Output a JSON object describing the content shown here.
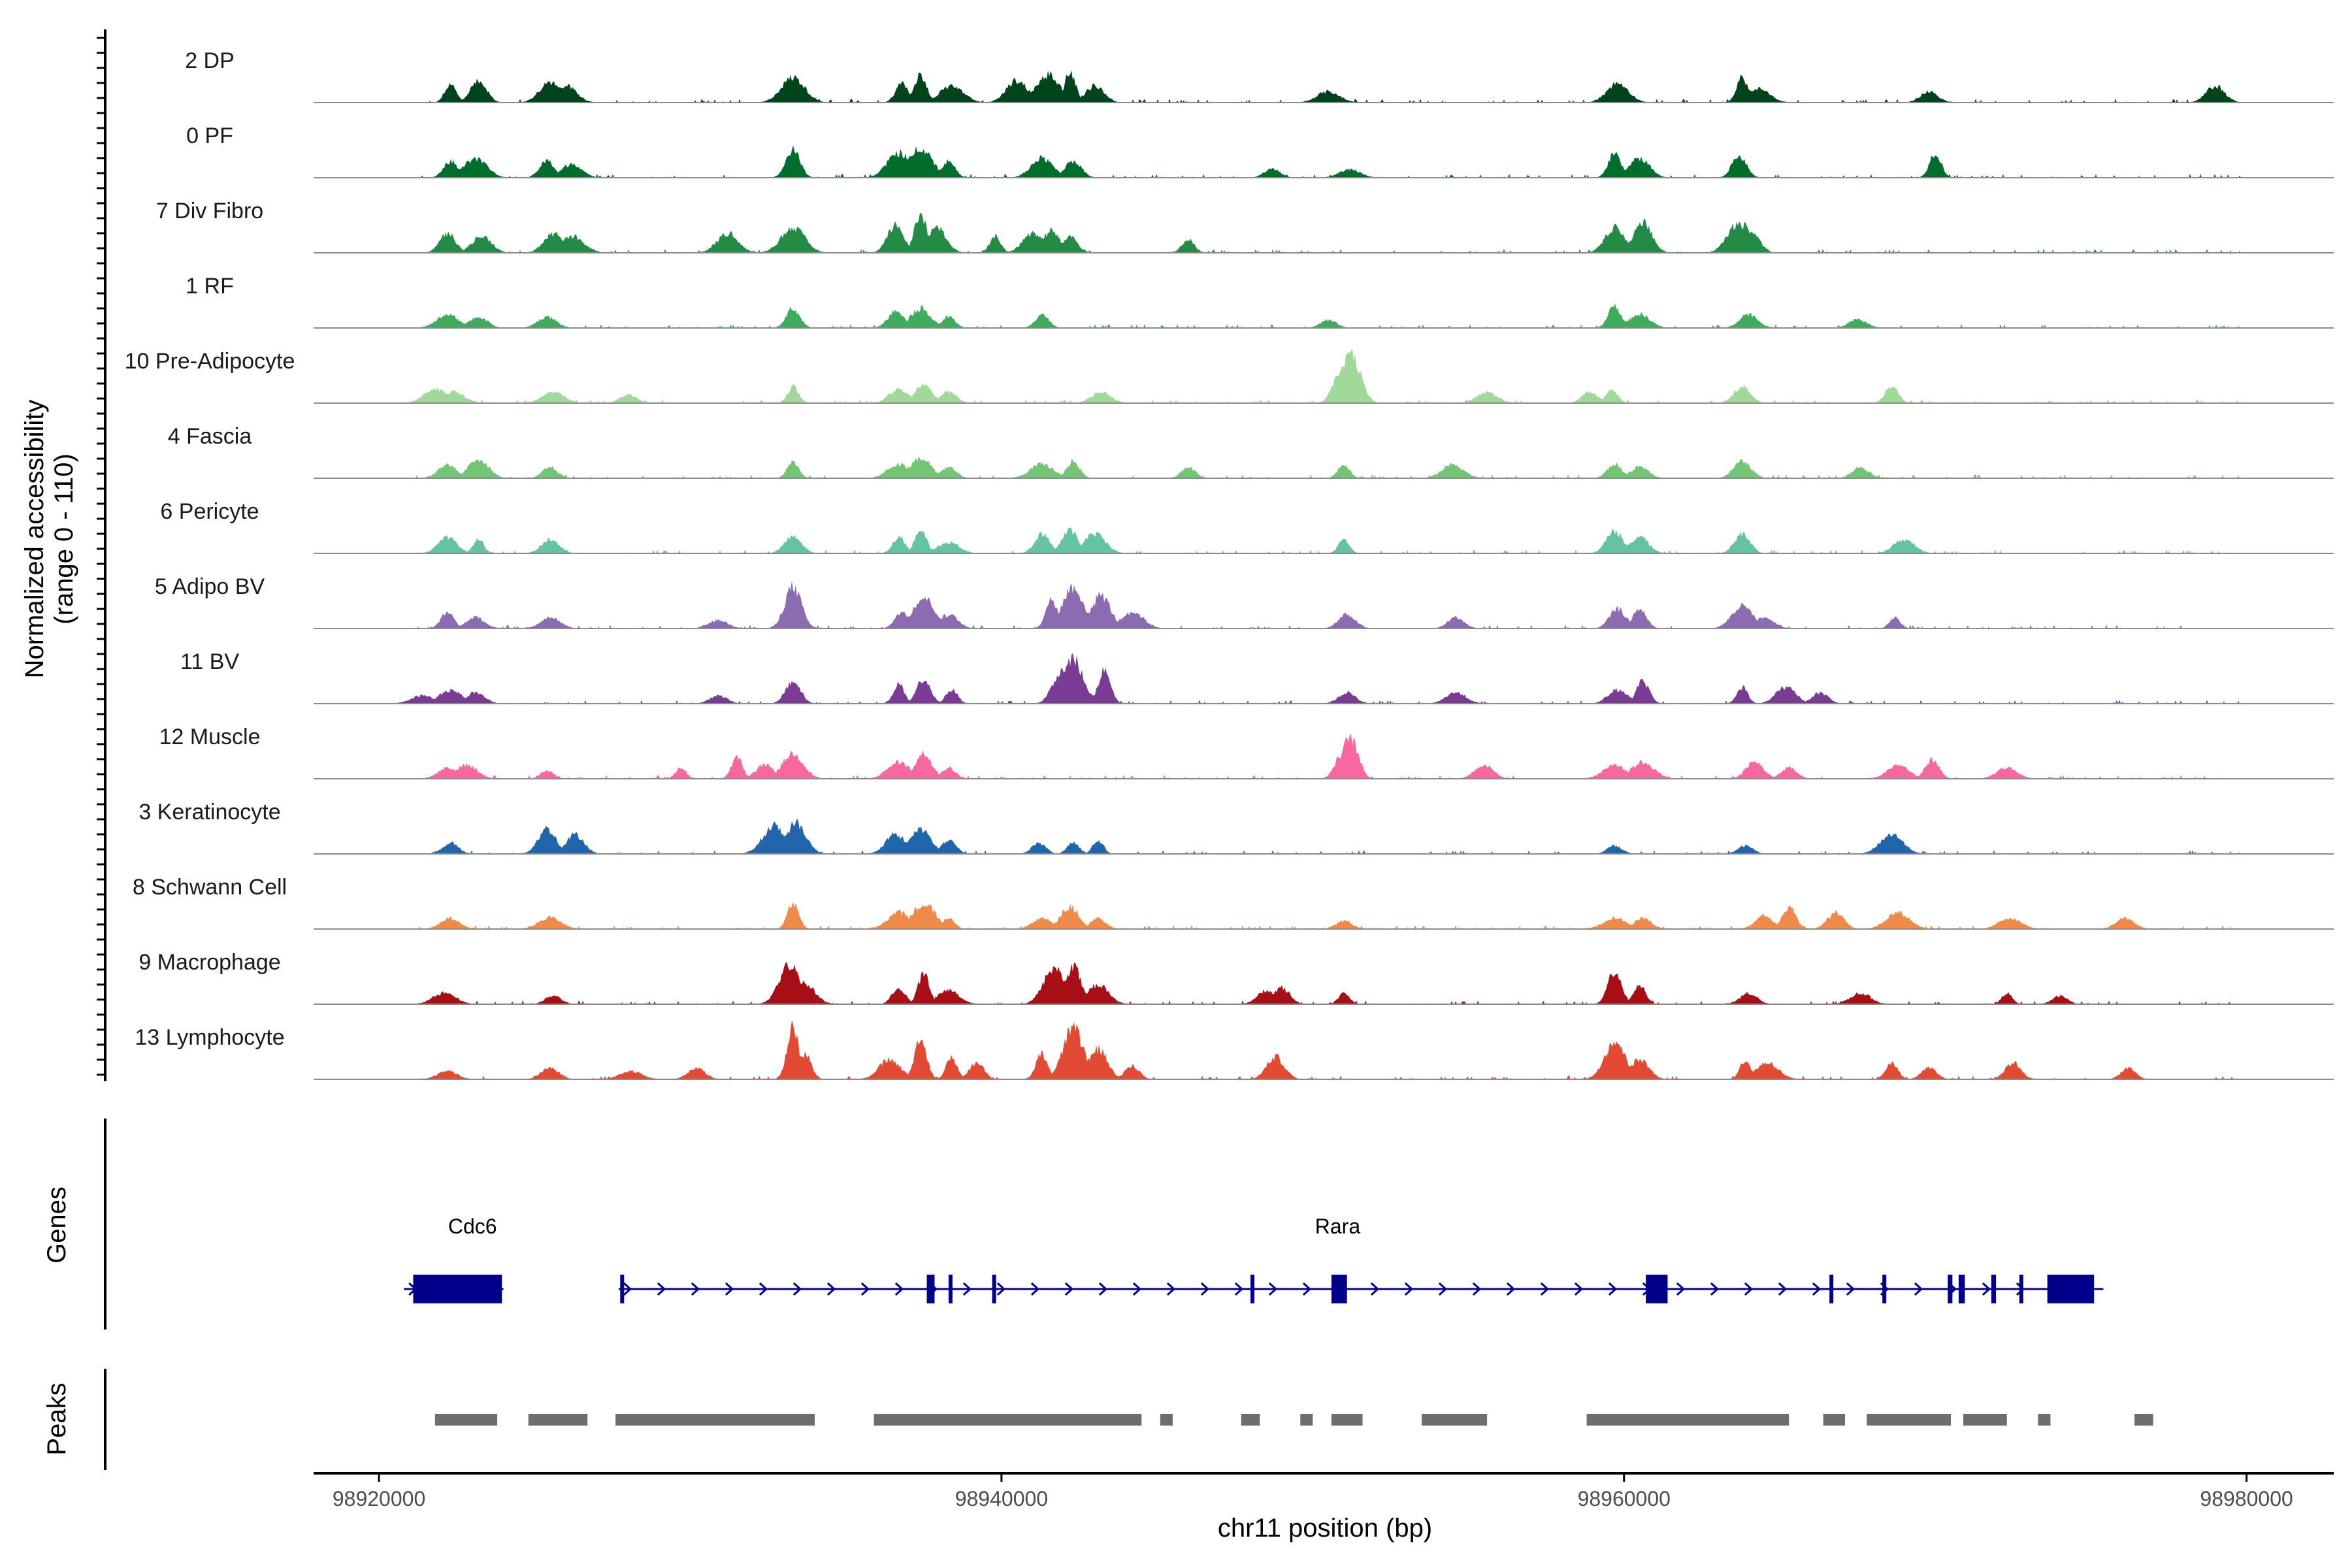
{
  "chart_data": {
    "type": "area",
    "title": "",
    "ylabel_line1": "Normalized accessibility",
    "ylabel_line2": "(range 0 - 110)",
    "xlabel": "chr11 position (bp)",
    "genes_label": "Genes",
    "peaks_label": "Peaks",
    "xlim": [
      98917900,
      98982800
    ],
    "x_ticks": [
      "98920000",
      "98940000",
      "98960000",
      "98980000"
    ],
    "y_range": [
      0,
      110
    ],
    "tracks": [
      {
        "label": "2 DP",
        "color": "#00441b",
        "peaks": [
          [
            98922300,
            0.35
          ],
          [
            98923200,
            0.4
          ],
          [
            98925500,
            0.35
          ],
          [
            98926000,
            0.3
          ],
          [
            98933300,
            0.45
          ],
          [
            98936800,
            0.35
          ],
          [
            98937400,
            0.5
          ],
          [
            98938400,
            0.3
          ],
          [
            98940500,
            0.4
          ],
          [
            98941500,
            0.5
          ],
          [
            98942200,
            0.55
          ],
          [
            98943000,
            0.3
          ],
          [
            98950500,
            0.2
          ],
          [
            98959800,
            0.35
          ],
          [
            98963800,
            0.45
          ],
          [
            98964300,
            0.25
          ],
          [
            98969800,
            0.2
          ],
          [
            98979000,
            0.3
          ]
        ]
      },
      {
        "label": "0 PF",
        "color": "#006d2c",
        "peaks": [
          [
            98922300,
            0.3
          ],
          [
            98923100,
            0.35
          ],
          [
            98925400,
            0.3
          ],
          [
            98926200,
            0.25
          ],
          [
            98933300,
            0.5
          ],
          [
            98936700,
            0.45
          ],
          [
            98937400,
            0.55
          ],
          [
            98938300,
            0.3
          ],
          [
            98941300,
            0.35
          ],
          [
            98942300,
            0.3
          ],
          [
            98948700,
            0.15
          ],
          [
            98951200,
            0.15
          ],
          [
            98959700,
            0.45
          ],
          [
            98960500,
            0.35
          ],
          [
            98963700,
            0.4
          ],
          [
            98970000,
            0.45
          ]
        ]
      },
      {
        "label": "7 Div Fibro",
        "color": "#238b45",
        "peaks": [
          [
            98922200,
            0.35
          ],
          [
            98923300,
            0.3
          ],
          [
            98925600,
            0.35
          ],
          [
            98926200,
            0.3
          ],
          [
            98931200,
            0.35
          ],
          [
            98933300,
            0.45
          ],
          [
            98936600,
            0.5
          ],
          [
            98937400,
            0.7
          ],
          [
            98937900,
            0.45
          ],
          [
            98939800,
            0.3
          ],
          [
            98941000,
            0.35
          ],
          [
            98941600,
            0.4
          ],
          [
            98942200,
            0.3
          ],
          [
            98946000,
            0.25
          ],
          [
            98959700,
            0.45
          ],
          [
            98960600,
            0.55
          ],
          [
            98963700,
            0.55
          ],
          [
            98964100,
            0.35
          ]
        ]
      },
      {
        "label": "1 RF",
        "color": "#41ab5d",
        "peaks": [
          [
            98922200,
            0.25
          ],
          [
            98923200,
            0.2
          ],
          [
            98925400,
            0.2
          ],
          [
            98933300,
            0.35
          ],
          [
            98936600,
            0.3
          ],
          [
            98937400,
            0.35
          ],
          [
            98938300,
            0.2
          ],
          [
            98941300,
            0.25
          ],
          [
            98950500,
            0.15
          ],
          [
            98959700,
            0.4
          ],
          [
            98960500,
            0.25
          ],
          [
            98964000,
            0.25
          ],
          [
            98967500,
            0.15
          ]
        ]
      },
      {
        "label": "10 Pre-Adipocyte",
        "color": "#a1d99b",
        "peaks": [
          [
            98921800,
            0.25
          ],
          [
            98922400,
            0.2
          ],
          [
            98925600,
            0.2
          ],
          [
            98928000,
            0.15
          ],
          [
            98933300,
            0.3
          ],
          [
            98936700,
            0.25
          ],
          [
            98937500,
            0.35
          ],
          [
            98938300,
            0.2
          ],
          [
            98943200,
            0.2
          ],
          [
            98951200,
            0.9
          ],
          [
            98950800,
            0.45
          ],
          [
            98955600,
            0.2
          ],
          [
            98958900,
            0.2
          ],
          [
            98959600,
            0.25
          ],
          [
            98963800,
            0.3
          ],
          [
            98968600,
            0.3
          ]
        ]
      },
      {
        "label": "4 Fascia",
        "color": "#74c476",
        "peaks": [
          [
            98922200,
            0.25
          ],
          [
            98923200,
            0.35
          ],
          [
            98925500,
            0.2
          ],
          [
            98933300,
            0.3
          ],
          [
            98936700,
            0.25
          ],
          [
            98937400,
            0.35
          ],
          [
            98938300,
            0.2
          ],
          [
            98941300,
            0.25
          ],
          [
            98942300,
            0.3
          ],
          [
            98946000,
            0.2
          ],
          [
            98951000,
            0.25
          ],
          [
            98954500,
            0.25
          ],
          [
            98959700,
            0.25
          ],
          [
            98960500,
            0.2
          ],
          [
            98963800,
            0.3
          ],
          [
            98967600,
            0.2
          ]
        ]
      },
      {
        "label": "6 Pericyte",
        "color": "#66c2a4",
        "peaks": [
          [
            98922200,
            0.3
          ],
          [
            98923200,
            0.25
          ],
          [
            98925500,
            0.25
          ],
          [
            98933300,
            0.3
          ],
          [
            98936700,
            0.3
          ],
          [
            98937400,
            0.4
          ],
          [
            98938300,
            0.2
          ],
          [
            98941300,
            0.35
          ],
          [
            98942200,
            0.4
          ],
          [
            98943000,
            0.35
          ],
          [
            98951000,
            0.25
          ],
          [
            98959700,
            0.4
          ],
          [
            98960500,
            0.3
          ],
          [
            98963800,
            0.35
          ],
          [
            98969000,
            0.25
          ]
        ]
      },
      {
        "label": "5 Adipo BV",
        "color": "#8c6bb1",
        "peaks": [
          [
            98922200,
            0.3
          ],
          [
            98923100,
            0.2
          ],
          [
            98925500,
            0.2
          ],
          [
            98930900,
            0.15
          ],
          [
            98933300,
            0.75
          ],
          [
            98936800,
            0.3
          ],
          [
            98937500,
            0.55
          ],
          [
            98938300,
            0.25
          ],
          [
            98941600,
            0.55
          ],
          [
            98942300,
            0.75
          ],
          [
            98943200,
            0.6
          ],
          [
            98944200,
            0.3
          ],
          [
            98951100,
            0.25
          ],
          [
            98954600,
            0.2
          ],
          [
            98959800,
            0.35
          ],
          [
            98960500,
            0.35
          ],
          [
            98963800,
            0.4
          ],
          [
            98964500,
            0.2
          ],
          [
            98968700,
            0.2
          ]
        ]
      },
      {
        "label": "11 BV",
        "color": "#7a3b94",
        "peaks": [
          [
            98921400,
            0.15
          ],
          [
            98922300,
            0.25
          ],
          [
            98923100,
            0.2
          ],
          [
            98930900,
            0.15
          ],
          [
            98933300,
            0.4
          ],
          [
            98936700,
            0.35
          ],
          [
            98937500,
            0.45
          ],
          [
            98938400,
            0.25
          ],
          [
            98941900,
            0.55
          ],
          [
            98942300,
            0.8
          ],
          [
            98943300,
            0.6
          ],
          [
            98951100,
            0.2
          ],
          [
            98954600,
            0.2
          ],
          [
            98959800,
            0.25
          ],
          [
            98960600,
            0.4
          ],
          [
            98963800,
            0.3
          ],
          [
            98965200,
            0.3
          ],
          [
            98966300,
            0.2
          ]
        ]
      },
      {
        "label": "12 Muscle",
        "color": "#f768a1",
        "peaks": [
          [
            98922200,
            0.2
          ],
          [
            98922800,
            0.25
          ],
          [
            98925400,
            0.15
          ],
          [
            98929700,
            0.2
          ],
          [
            98931500,
            0.4
          ],
          [
            98932400,
            0.25
          ],
          [
            98933300,
            0.45
          ],
          [
            98936700,
            0.3
          ],
          [
            98937500,
            0.45
          ],
          [
            98938300,
            0.2
          ],
          [
            98951200,
            0.75
          ],
          [
            98950900,
            0.4
          ],
          [
            98955500,
            0.25
          ],
          [
            98959700,
            0.25
          ],
          [
            98960600,
            0.3
          ],
          [
            98964200,
            0.3
          ],
          [
            98965300,
            0.2
          ],
          [
            98968800,
            0.25
          ],
          [
            98969900,
            0.35
          ],
          [
            98972300,
            0.2
          ]
        ]
      },
      {
        "label": "3 Keratinocyte",
        "color": "#2166ac",
        "peaks": [
          [
            98922300,
            0.2
          ],
          [
            98925400,
            0.45
          ],
          [
            98926300,
            0.35
          ],
          [
            98932700,
            0.5
          ],
          [
            98933400,
            0.55
          ],
          [
            98936600,
            0.35
          ],
          [
            98937400,
            0.45
          ],
          [
            98938300,
            0.25
          ],
          [
            98941200,
            0.2
          ],
          [
            98942300,
            0.2
          ],
          [
            98943100,
            0.25
          ],
          [
            98959700,
            0.15
          ],
          [
            98963900,
            0.15
          ],
          [
            98968600,
            0.35
          ]
        ]
      },
      {
        "label": "8 Schwann Cell",
        "color": "#f08a4b",
        "peaks": [
          [
            98922300,
            0.2
          ],
          [
            98925500,
            0.2
          ],
          [
            98933300,
            0.45
          ],
          [
            98936700,
            0.3
          ],
          [
            98937500,
            0.45
          ],
          [
            98938300,
            0.2
          ],
          [
            98941300,
            0.2
          ],
          [
            98942200,
            0.4
          ],
          [
            98943100,
            0.2
          ],
          [
            98951000,
            0.15
          ],
          [
            98959700,
            0.2
          ],
          [
            98960600,
            0.2
          ],
          [
            98964500,
            0.25
          ],
          [
            98965300,
            0.4
          ],
          [
            98966800,
            0.3
          ],
          [
            98968800,
            0.3
          ],
          [
            98972400,
            0.2
          ],
          [
            98976100,
            0.2
          ]
        ]
      },
      {
        "label": "9 Macrophage",
        "color": "#a50f15",
        "peaks": [
          [
            98922100,
            0.2
          ],
          [
            98925600,
            0.15
          ],
          [
            98933200,
            0.7
          ],
          [
            98933600,
            0.4
          ],
          [
            98936700,
            0.3
          ],
          [
            98937500,
            0.55
          ],
          [
            98938300,
            0.25
          ],
          [
            98941700,
            0.65
          ],
          [
            98942300,
            0.7
          ],
          [
            98943100,
            0.35
          ],
          [
            98948500,
            0.25
          ],
          [
            98949000,
            0.3
          ],
          [
            98951000,
            0.2
          ],
          [
            98959700,
            0.6
          ],
          [
            98960500,
            0.35
          ],
          [
            98964000,
            0.2
          ],
          [
            98967600,
            0.2
          ],
          [
            98972300,
            0.2
          ],
          [
            98974000,
            0.15
          ]
        ]
      },
      {
        "label": "13 Lymphocyte",
        "color": "#e34a33",
        "peaks": [
          [
            98922200,
            0.15
          ],
          [
            98925500,
            0.2
          ],
          [
            98928100,
            0.15
          ],
          [
            98930200,
            0.2
          ],
          [
            98933300,
            0.95
          ],
          [
            98933700,
            0.45
          ],
          [
            98936400,
            0.35
          ],
          [
            98937400,
            0.75
          ],
          [
            98938400,
            0.4
          ],
          [
            98939200,
            0.3
          ],
          [
            98941300,
            0.45
          ],
          [
            98942300,
            0.9
          ],
          [
            98943100,
            0.55
          ],
          [
            98944200,
            0.25
          ],
          [
            98948800,
            0.4
          ],
          [
            98959700,
            0.7
          ],
          [
            98960500,
            0.35
          ],
          [
            98963900,
            0.35
          ],
          [
            98964600,
            0.3
          ],
          [
            98968600,
            0.3
          ],
          [
            98969800,
            0.2
          ],
          [
            98972500,
            0.3
          ],
          [
            98976200,
            0.2
          ]
        ]
      }
    ],
    "genes": [
      {
        "name": "Cdc6",
        "start": 98920800,
        "end": 98924000,
        "strand": "+",
        "exons": [
          [
            98921100,
            98923950
          ]
        ]
      },
      {
        "name": "Rara",
        "start": 98927700,
        "end": 98975400,
        "strand": "+",
        "label_pos": 98950800,
        "exons": [
          [
            98927750,
            98927850
          ],
          [
            98937600,
            98937850
          ],
          [
            98938300,
            98938400
          ],
          [
            98939700,
            98939800
          ],
          [
            98948000,
            98948120
          ],
          [
            98950600,
            98951100
          ],
          [
            98960700,
            98961400
          ],
          [
            98966600,
            98966700
          ],
          [
            98968300,
            98968400
          ],
          [
            98970400,
            98970550
          ],
          [
            98970750,
            98970950
          ],
          [
            98971800,
            98971950
          ],
          [
            98972700,
            98972800
          ],
          [
            98973600,
            98975100
          ]
        ]
      }
    ],
    "peaks": [
      [
        98921800,
        98923800
      ],
      [
        98924800,
        98926700
      ],
      [
        98927600,
        98934000
      ],
      [
        98935900,
        98944500
      ],
      [
        98945100,
        98945500
      ],
      [
        98947700,
        98948300
      ],
      [
        98949600,
        98950000
      ],
      [
        98950600,
        98951600
      ],
      [
        98953500,
        98955600
      ],
      [
        98958800,
        98965300
      ],
      [
        98966400,
        98967100
      ],
      [
        98967800,
        98970500
      ],
      [
        98970900,
        98972300
      ],
      [
        98973300,
        98973700
      ],
      [
        98976400,
        98977000
      ]
    ]
  }
}
